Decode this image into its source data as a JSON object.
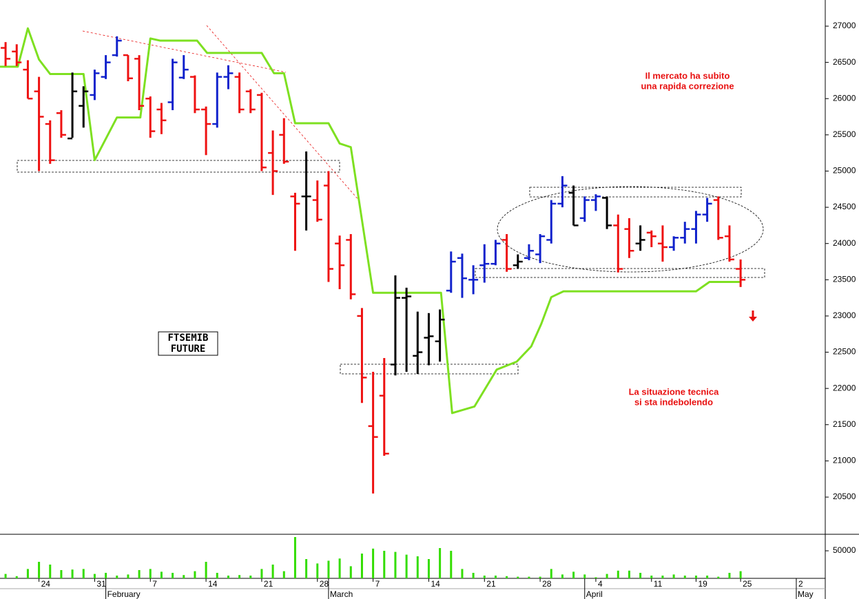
{
  "chart_data": [
    {
      "type": "ohlc",
      "label_lines": [
        "FTSEMIB",
        "FUTURE"
      ],
      "annotations": [
        {
          "lines": [
            "Il mercato ha subito",
            "una rapida correzione"
          ]
        },
        {
          "lines": [
            "La situazione tecnica",
            "si sta indebolendo"
          ]
        }
      ],
      "x": [
        -3,
        -2,
        -1,
        0,
        1,
        2,
        3,
        4,
        5,
        6,
        7,
        8,
        9,
        10,
        11,
        12,
        13,
        14,
        15,
        16,
        17,
        18,
        19,
        20,
        21,
        22,
        23,
        24,
        25,
        26,
        27,
        28,
        29,
        30,
        31,
        32,
        33,
        34,
        35,
        36,
        37,
        38,
        39,
        40,
        41,
        42,
        43,
        44,
        45,
        46,
        47,
        48,
        49,
        50,
        51,
        52,
        53,
        54,
        55,
        56,
        57,
        58,
        59,
        60,
        61,
        62,
        63
      ],
      "open": [
        26700,
        26650,
        26400,
        26100,
        25650,
        25800,
        25450,
        25900,
        26050,
        26300,
        26600,
        26600,
        26550,
        26000,
        25850,
        25950,
        26290,
        26300,
        25850,
        25650,
        26300,
        26300,
        26100,
        26050,
        25250,
        25500,
        24650,
        24650,
        24600,
        24800,
        24000,
        24050,
        23000,
        21480,
        21900,
        22330,
        23250,
        22450,
        22700,
        22650,
        23350,
        23800,
        23500,
        23700,
        23720,
        24050,
        23700,
        23800,
        23850,
        24050,
        24550,
        24700,
        24350,
        24600,
        24630,
        24250,
        24200,
        24000,
        24150,
        24000,
        23950,
        24080,
        24200,
        24400,
        24600,
        24100,
        23650
      ],
      "high": [
        26780,
        26750,
        26530,
        26300,
        25700,
        25840,
        26360,
        26170,
        26400,
        26600,
        26860,
        26600,
        26600,
        26030,
        25940,
        26550,
        26600,
        26320,
        25890,
        26360,
        26460,
        26360,
        26130,
        26080,
        25560,
        25730,
        24700,
        25270,
        24870,
        25000,
        24110,
        24130,
        23110,
        22230,
        22420,
        23560,
        23390,
        23060,
        23040,
        23090,
        23890,
        23860,
        23700,
        23990,
        24050,
        24130,
        23850,
        23990,
        24130,
        24600,
        24930,
        24800,
        24650,
        24680,
        24650,
        24400,
        24350,
        24250,
        24180,
        24250,
        24100,
        24300,
        24450,
        24630,
        24650,
        24250,
        23780
      ],
      "low": [
        26450,
        26450,
        26000,
        25000,
        25100,
        25460,
        25460,
        25600,
        25980,
        26270,
        26580,
        26240,
        25840,
        25460,
        25510,
        25840,
        26270,
        25800,
        25220,
        25600,
        26130,
        25800,
        25800,
        25000,
        24670,
        25100,
        23900,
        24180,
        24300,
        23470,
        23370,
        23230,
        21800,
        20550,
        21070,
        22180,
        22230,
        22200,
        22320,
        22370,
        23320,
        23250,
        23300,
        23460,
        23700,
        23610,
        23650,
        23770,
        23730,
        24000,
        24500,
        24250,
        24300,
        24450,
        24200,
        23600,
        23800,
        23900,
        23950,
        23750,
        23900,
        24000,
        24000,
        24300,
        24050,
        23750,
        23400
      ],
      "close": [
        26550,
        26500,
        26000,
        25750,
        25150,
        25500,
        26100,
        26100,
        26350,
        26500,
        26800,
        26280,
        25900,
        25550,
        25700,
        26500,
        26400,
        25850,
        25650,
        26300,
        26350,
        25850,
        25850,
        25050,
        25000,
        25130,
        24550,
        24650,
        24330,
        23650,
        23700,
        23300,
        22150,
        21330,
        21100,
        23250,
        23270,
        22500,
        22720,
        22950,
        23750,
        23520,
        23500,
        23720,
        24000,
        23650,
        23750,
        23900,
        24100,
        24550,
        24800,
        24250,
        24600,
        24650,
        24250,
        23650,
        23900,
        24050,
        24100,
        23950,
        24080,
        24200,
        24400,
        24550,
        24080,
        23780,
        23500
      ],
      "colors": [
        "#ee1111",
        "#ee1111",
        "#ee1111",
        "#ee1111",
        "#ee1111",
        "#ee1111",
        "#000000",
        "#000000",
        "#1122cc",
        "#1122cc",
        "#1122cc",
        "#ee1111",
        "#ee1111",
        "#ee1111",
        "#ee1111",
        "#1122cc",
        "#1122cc",
        "#ee1111",
        "#ee1111",
        "#1122cc",
        "#1122cc",
        "#ee1111",
        "#ee1111",
        "#ee1111",
        "#ee1111",
        "#ee1111",
        "#ee1111",
        "#000000",
        "#ee1111",
        "#ee1111",
        "#ee1111",
        "#ee1111",
        "#ee1111",
        "#ee1111",
        "#ee1111",
        "#000000",
        "#000000",
        "#000000",
        "#000000",
        "#000000",
        "#1122cc",
        "#1122cc",
        "#1122cc",
        "#1122cc",
        "#1122cc",
        "#ee1111",
        "#000000",
        "#1122cc",
        "#1122cc",
        "#1122cc",
        "#1122cc",
        "#000000",
        "#1122cc",
        "#1122cc",
        "#000000",
        "#ee1111",
        "#ee1111",
        "#000000",
        "#ee1111",
        "#ee1111",
        "#1122cc",
        "#1122cc",
        "#1122cc",
        "#1122cc",
        "#ee1111",
        "#ee1111",
        "#ee1111"
      ],
      "overlay": {
        "type": "line",
        "color": "#7ee021",
        "x": [
          -3.5,
          -1.9,
          -1,
          0,
          1,
          4,
          5,
          7,
          9.1,
          10,
          10.9,
          14.2,
          15.1,
          20,
          21.1,
          22,
          23,
          26,
          27,
          28,
          30,
          36.1,
          37.1,
          39.1,
          41.1,
          42.9,
          44.2,
          45.1,
          46,
          47.1,
          59,
          60.2,
          63
        ],
        "values": [
          26440,
          26440,
          26970,
          26540,
          26340,
          26340,
          25150,
          25740,
          25740,
          26830,
          26800,
          26800,
          26630,
          26630,
          26350,
          26350,
          25660,
          25660,
          25380,
          25330,
          23320,
          23320,
          21660,
          21750,
          22260,
          22370,
          22580,
          22890,
          23260,
          23340,
          23340,
          23470,
          23470
        ]
      },
      "xlim": [
        -3.5,
        70.6
      ],
      "ylim": [
        19987,
        27361
      ],
      "yticks": [
        20500,
        21000,
        21500,
        22000,
        22500,
        23000,
        23500,
        24000,
        24500,
        25000,
        25500,
        26000,
        26500,
        27000
      ]
    },
    {
      "type": "bar",
      "color": "#33dd00",
      "x": [
        -3,
        -2,
        -1,
        0,
        1,
        2,
        3,
        4,
        5,
        6,
        7,
        8,
        9,
        10,
        11,
        12,
        13,
        14,
        15,
        16,
        17,
        18,
        19,
        20,
        21,
        22,
        23,
        24,
        25,
        26,
        27,
        28,
        29,
        30,
        31,
        32,
        33,
        34,
        35,
        36,
        37,
        38,
        39,
        40,
        41,
        42,
        43,
        44,
        45,
        46,
        47,
        48,
        49,
        50,
        51,
        52,
        53,
        54,
        55,
        56,
        57,
        58,
        59,
        60,
        61,
        62,
        63
      ],
      "values": [
        8000,
        4000,
        17000,
        30000,
        25000,
        15000,
        16000,
        17000,
        8000,
        10000,
        5000,
        7000,
        15000,
        17000,
        12000,
        10000,
        6000,
        13000,
        30000,
        10000,
        5000,
        6000,
        5000,
        17000,
        25000,
        13000,
        75000,
        35000,
        27000,
        32000,
        36000,
        22000,
        45000,
        54000,
        50000,
        48000,
        43000,
        40000,
        35000,
        55000,
        50000,
        17000,
        10000,
        5000,
        5000,
        4000,
        3000,
        3000,
        3000,
        17000,
        7000,
        12000,
        7000,
        2000,
        8000,
        14000,
        14000,
        10000,
        5000,
        5000,
        7000,
        5000,
        5000,
        5000,
        3000,
        10000,
        13000
      ],
      "xlim": [
        -3.5,
        70.6
      ],
      "ylim": [
        0,
        80000
      ],
      "yticks": [
        50000
      ],
      "xticks": [
        {
          "value": 0,
          "label": "24"
        },
        {
          "value": 5,
          "label": "31"
        },
        {
          "value": 10,
          "label": "7"
        },
        {
          "value": 15,
          "label": "14"
        },
        {
          "value": 20,
          "label": "21"
        },
        {
          "value": 25,
          "label": "28"
        },
        {
          "value": 30,
          "label": "7"
        },
        {
          "value": 35,
          "label": "14"
        },
        {
          "value": 40,
          "label": "21"
        },
        {
          "value": 45,
          "label": "28"
        },
        {
          "value": 50,
          "label": "4"
        },
        {
          "value": 55,
          "label": "11"
        },
        {
          "value": 59,
          "label": "19"
        },
        {
          "value": 63,
          "label": "25"
        },
        {
          "value": 68,
          "label": "2"
        }
      ],
      "month_ticks": [
        {
          "value": 6,
          "label": "February"
        },
        {
          "value": 26,
          "label": "March"
        },
        {
          "value": 49,
          "label": "April"
        },
        {
          "value": 68,
          "label": "May"
        }
      ]
    }
  ]
}
